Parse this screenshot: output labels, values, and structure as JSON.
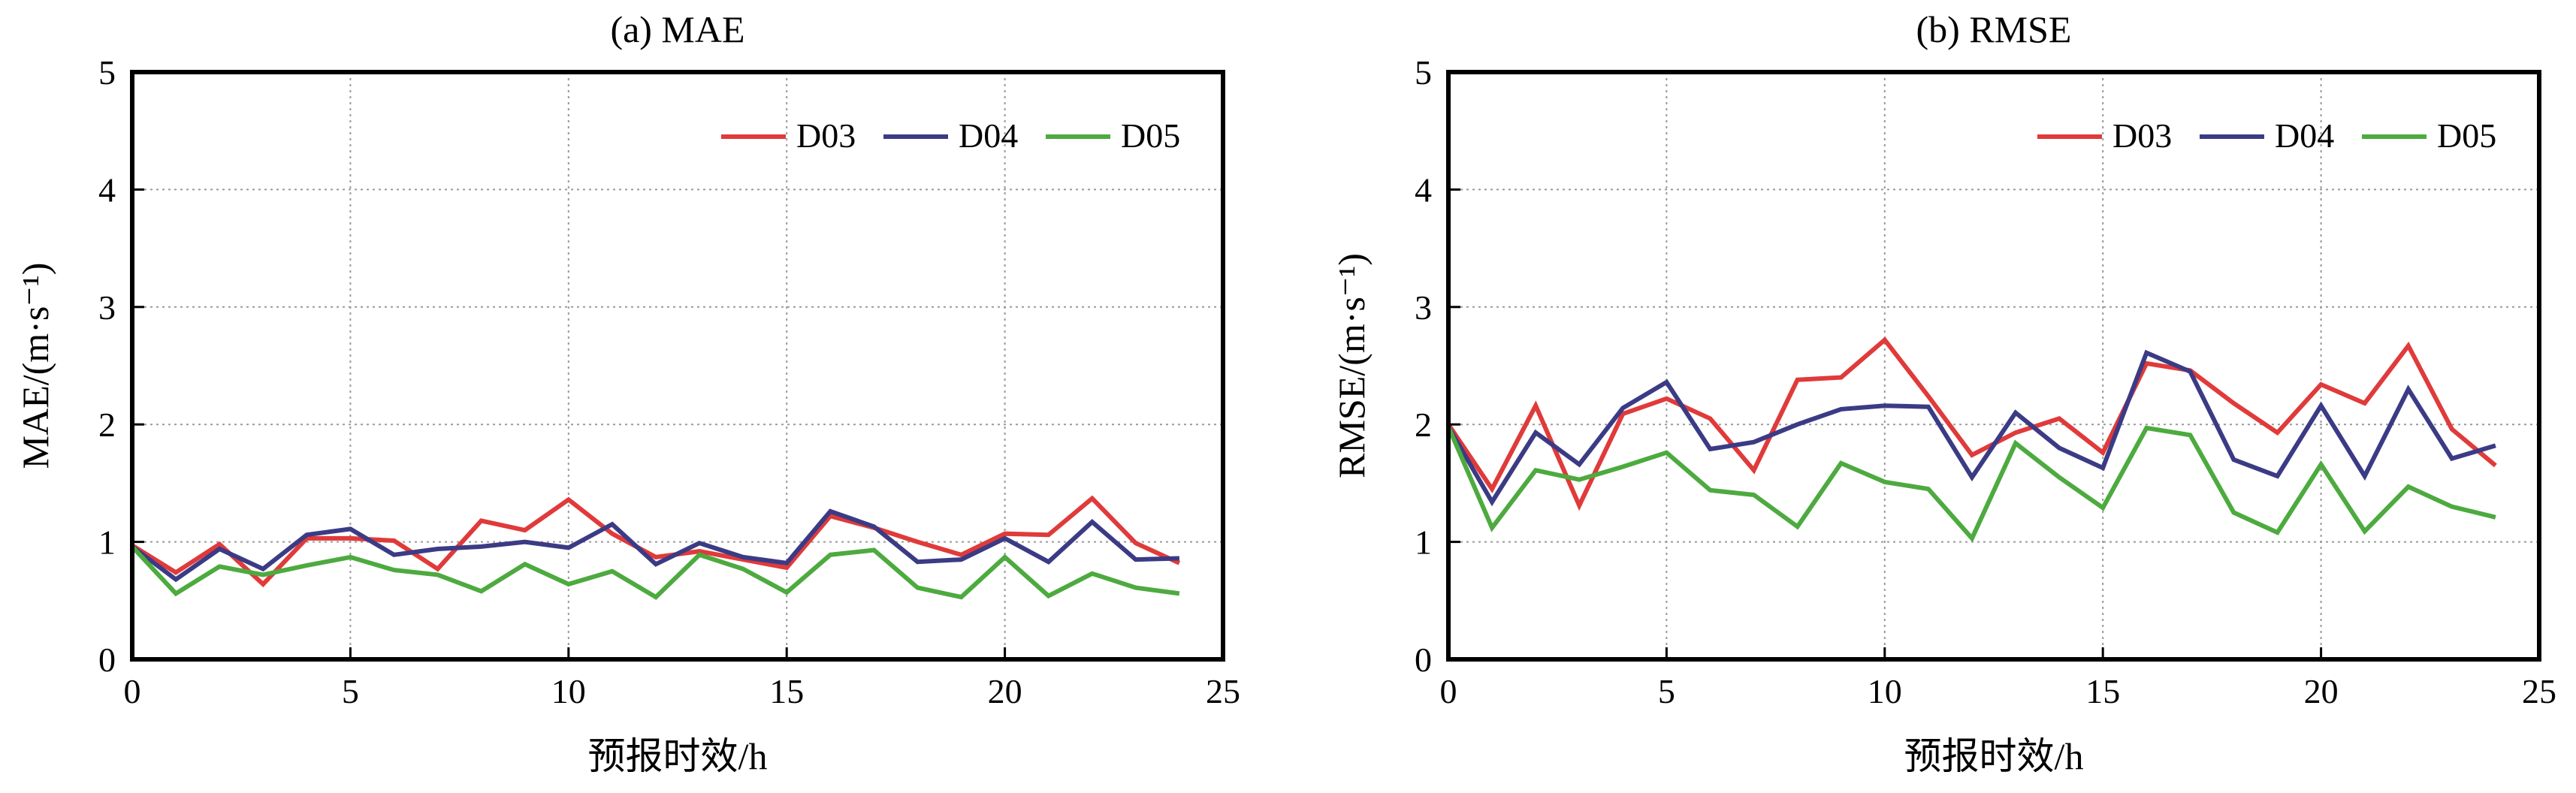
{
  "chart_data": [
    {
      "type": "line",
      "title": "(a) MAE",
      "xlabel": "预报时效/h",
      "ylabel": "MAE/(m·s⁻¹)",
      "xlim": [
        0,
        25
      ],
      "ylim": [
        0,
        5
      ],
      "xticks": [
        0,
        5,
        10,
        15,
        20,
        25
      ],
      "yticks": [
        0,
        1,
        2,
        3,
        4,
        5
      ],
      "grid": true,
      "legend_position": "top-right",
      "x": [
        0,
        1,
        2,
        3,
        4,
        5,
        6,
        7,
        8,
        9,
        10,
        11,
        12,
        13,
        14,
        15,
        16,
        17,
        18,
        19,
        20,
        21,
        22,
        23,
        24
      ],
      "series": [
        {
          "name": "D03",
          "color": "#e03a3a",
          "values": [
            0.97,
            0.74,
            0.98,
            0.64,
            1.03,
            1.03,
            1.01,
            0.77,
            1.18,
            1.1,
            1.36,
            1.07,
            0.87,
            0.92,
            0.85,
            0.78,
            1.22,
            1.12,
            1.0,
            0.89,
            1.07,
            1.06,
            1.37,
            0.99,
            0.82
          ]
        },
        {
          "name": "D04",
          "color": "#3b3b85",
          "values": [
            0.96,
            0.68,
            0.94,
            0.77,
            1.06,
            1.11,
            0.89,
            0.94,
            0.96,
            1.0,
            0.95,
            1.15,
            0.81,
            0.99,
            0.87,
            0.82,
            1.26,
            1.13,
            0.83,
            0.85,
            1.03,
            0.83,
            1.17,
            0.85,
            0.86
          ]
        },
        {
          "name": "D05",
          "color": "#4daa3f",
          "values": [
            0.96,
            0.56,
            0.79,
            0.72,
            0.8,
            0.87,
            0.76,
            0.72,
            0.58,
            0.81,
            0.64,
            0.75,
            0.53,
            0.89,
            0.77,
            0.57,
            0.89,
            0.93,
            0.61,
            0.53,
            0.87,
            0.54,
            0.73,
            0.61,
            0.56
          ]
        }
      ]
    },
    {
      "type": "line",
      "title": "(b) RMSE",
      "xlabel": "预报时效/h",
      "ylabel": "RMSE/(m·s⁻¹)",
      "xlim": [
        0,
        25
      ],
      "ylim": [
        0,
        5
      ],
      "xticks": [
        0,
        5,
        10,
        15,
        20,
        25
      ],
      "yticks": [
        0,
        1,
        2,
        3,
        4,
        5
      ],
      "grid": true,
      "legend_position": "top-right",
      "x": [
        0,
        1,
        2,
        3,
        4,
        5,
        6,
        7,
        8,
        9,
        10,
        11,
        12,
        13,
        14,
        15,
        16,
        17,
        18,
        19,
        20,
        21,
        22,
        23,
        24
      ],
      "series": [
        {
          "name": "D03",
          "color": "#e03a3a",
          "values": [
            2.0,
            1.45,
            2.16,
            1.31,
            2.09,
            2.22,
            2.05,
            1.61,
            2.38,
            2.4,
            2.72,
            2.24,
            1.74,
            1.93,
            2.05,
            1.76,
            2.52,
            2.46,
            2.18,
            1.93,
            2.34,
            2.18,
            2.67,
            1.96,
            1.65
          ]
        },
        {
          "name": "D04",
          "color": "#3b3b85",
          "values": [
            1.98,
            1.34,
            1.93,
            1.66,
            2.14,
            2.36,
            1.79,
            1.85,
            2.0,
            2.13,
            2.16,
            2.15,
            1.55,
            2.1,
            1.8,
            1.63,
            2.61,
            2.45,
            1.7,
            1.56,
            2.16,
            1.56,
            2.3,
            1.71,
            1.82
          ]
        },
        {
          "name": "D05",
          "color": "#4daa3f",
          "values": [
            1.98,
            1.12,
            1.61,
            1.53,
            1.64,
            1.76,
            1.44,
            1.4,
            1.13,
            1.67,
            1.51,
            1.45,
            1.03,
            1.84,
            1.55,
            1.29,
            1.97,
            1.91,
            1.25,
            1.08,
            1.66,
            1.09,
            1.47,
            1.3,
            1.21
          ]
        }
      ]
    }
  ]
}
